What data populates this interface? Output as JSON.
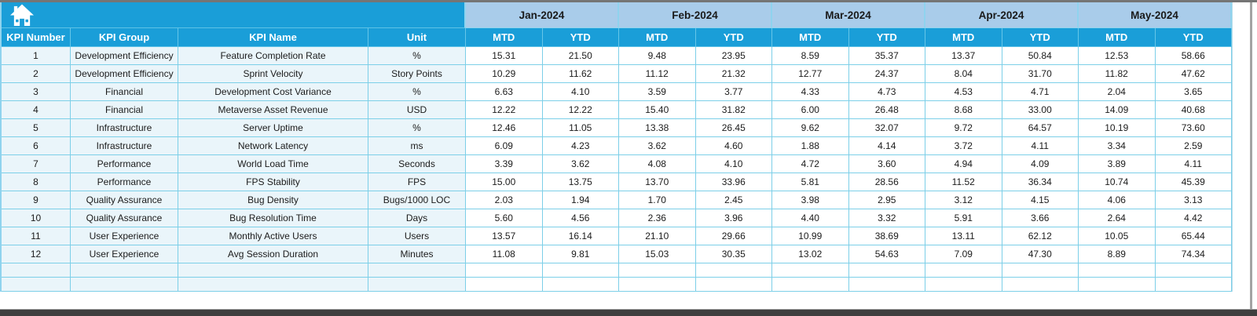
{
  "frame": {
    "home_icon": "home-icon"
  },
  "colors": {
    "header_cyan": "#1a9ed8",
    "month_band_blue": "#a9ccea",
    "cell_border_cyan": "#7ccfe8",
    "left_column_tint": "#eaf5fa",
    "frame_gray_top": "#757575",
    "frame_gray_bottom": "#3f3f3f"
  },
  "table": {
    "fixed_headers": [
      "KPI Number",
      "KPI Group",
      "KPI Name",
      "Unit"
    ],
    "months": [
      "Jan-2024",
      "Feb-2024",
      "Mar-2024",
      "Apr-2024",
      "May-2024"
    ],
    "sub_headers": [
      "MTD",
      "YTD"
    ],
    "rows": [
      {
        "number": "1",
        "group": "Development Efficiency",
        "name": "Feature Completion Rate",
        "unit": "%",
        "values": [
          "15.31",
          "21.50",
          "9.48",
          "23.95",
          "8.59",
          "35.37",
          "13.37",
          "50.84",
          "12.53",
          "58.66"
        ]
      },
      {
        "number": "2",
        "group": "Development Efficiency",
        "name": "Sprint Velocity",
        "unit": "Story Points",
        "values": [
          "10.29",
          "11.62",
          "11.12",
          "21.32",
          "12.77",
          "24.37",
          "8.04",
          "31.70",
          "11.82",
          "47.62"
        ]
      },
      {
        "number": "3",
        "group": "Financial",
        "name": "Development Cost Variance",
        "unit": "%",
        "values": [
          "6.63",
          "4.10",
          "3.59",
          "3.77",
          "4.33",
          "4.73",
          "4.53",
          "4.71",
          "2.04",
          "3.65"
        ]
      },
      {
        "number": "4",
        "group": "Financial",
        "name": "Metaverse Asset Revenue",
        "unit": "USD",
        "values": [
          "12.22",
          "12.22",
          "15.40",
          "31.82",
          "6.00",
          "26.48",
          "8.68",
          "33.00",
          "14.09",
          "40.68"
        ]
      },
      {
        "number": "5",
        "group": "Infrastructure",
        "name": "Server Uptime",
        "unit": "%",
        "values": [
          "12.46",
          "11.05",
          "13.38",
          "26.45",
          "9.62",
          "32.07",
          "9.72",
          "64.57",
          "10.19",
          "73.60"
        ]
      },
      {
        "number": "6",
        "group": "Infrastructure",
        "name": "Network Latency",
        "unit": "ms",
        "values": [
          "6.09",
          "4.23",
          "3.62",
          "4.60",
          "1.88",
          "4.14",
          "3.72",
          "4.11",
          "3.34",
          "2.59"
        ]
      },
      {
        "number": "7",
        "group": "Performance",
        "name": "World Load Time",
        "unit": "Seconds",
        "values": [
          "3.39",
          "3.62",
          "4.08",
          "4.10",
          "4.72",
          "3.60",
          "4.94",
          "4.09",
          "3.89",
          "4.11"
        ]
      },
      {
        "number": "8",
        "group": "Performance",
        "name": "FPS Stability",
        "unit": "FPS",
        "values": [
          "15.00",
          "13.75",
          "13.70",
          "33.96",
          "5.81",
          "28.56",
          "11.52",
          "36.34",
          "10.74",
          "45.39"
        ]
      },
      {
        "number": "9",
        "group": "Quality Assurance",
        "name": "Bug Density",
        "unit": "Bugs/1000 LOC",
        "values": [
          "2.03",
          "1.94",
          "1.70",
          "2.45",
          "3.98",
          "2.95",
          "3.12",
          "4.15",
          "4.06",
          "3.13"
        ]
      },
      {
        "number": "10",
        "group": "Quality Assurance",
        "name": "Bug Resolution Time",
        "unit": "Days",
        "values": [
          "5.60",
          "4.56",
          "2.36",
          "3.96",
          "4.40",
          "3.32",
          "5.91",
          "3.66",
          "2.64",
          "4.42"
        ]
      },
      {
        "number": "11",
        "group": "User Experience",
        "name": "Monthly Active Users",
        "unit": "Users",
        "values": [
          "13.57",
          "16.14",
          "21.10",
          "29.66",
          "10.99",
          "38.69",
          "13.11",
          "62.12",
          "10.05",
          "65.44"
        ]
      },
      {
        "number": "12",
        "group": "User Experience",
        "name": "Avg Session Duration",
        "unit": "Minutes",
        "values": [
          "11.08",
          "9.81",
          "15.03",
          "30.35",
          "13.02",
          "54.63",
          "7.09",
          "47.30",
          "8.89",
          "74.34"
        ]
      }
    ],
    "empty_row_count": 2
  }
}
